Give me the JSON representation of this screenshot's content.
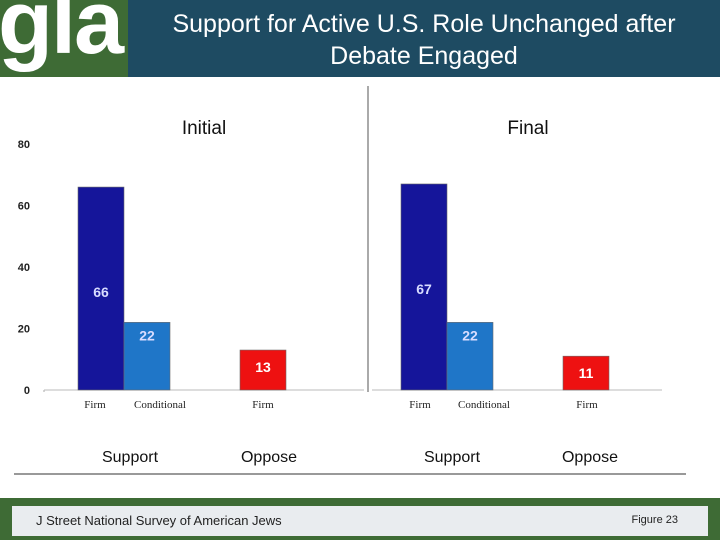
{
  "header": {
    "logo": "gla",
    "title_line1": "Support for Active U.S. Role Unchanged after",
    "title_line2": "Debate Engaged"
  },
  "footer": {
    "source": "J Street National Survey of American Jews",
    "figure": "Figure 23"
  },
  "colors": {
    "header_bg": "#1e4b62",
    "footer_bg": "#3e6b35",
    "firm_support": "#15159a",
    "conditional_support": "#1f76c8",
    "firm_oppose": "#ee1111",
    "value_support": "#d8dcff",
    "value_oppose": "#ffffff"
  },
  "chart_data": [
    {
      "type": "bar",
      "title": "Initial",
      "categories": [
        "Firm",
        "Conditional",
        "Firm"
      ],
      "groups": [
        "Support",
        "Oppose"
      ],
      "values": [
        66,
        22,
        13
      ],
      "ylim": [
        0,
        80
      ],
      "yticks": [
        0,
        20,
        40,
        60,
        80
      ]
    },
    {
      "type": "bar",
      "title": "Final",
      "categories": [
        "Firm",
        "Conditional",
        "Firm"
      ],
      "groups": [
        "Support",
        "Oppose"
      ],
      "values": [
        67,
        22,
        11
      ],
      "ylim": [
        0,
        80
      ],
      "yticks": [
        0,
        20,
        40,
        60,
        80
      ]
    }
  ]
}
